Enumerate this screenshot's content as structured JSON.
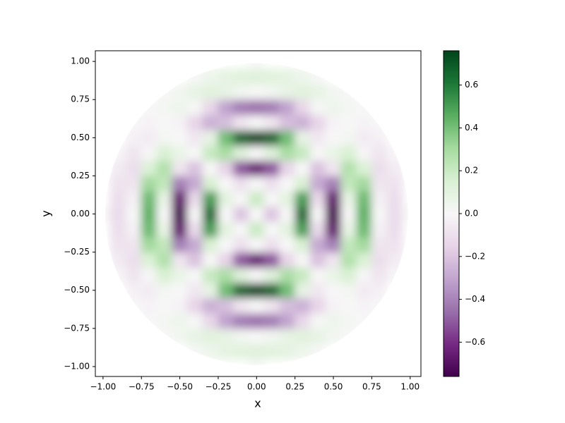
{
  "chart_data": {
    "type": "heatmap",
    "xlabel": "x",
    "ylabel": "y",
    "x": [
      -1,
      -0.9,
      -0.8,
      -0.7,
      -0.6,
      -0.5,
      -0.4,
      -0.3,
      -0.2,
      -0.1,
      0,
      0.1,
      0.2,
      0.3,
      0.4,
      0.5,
      0.6,
      0.7,
      0.8,
      0.9,
      1
    ],
    "y": [
      -1,
      -0.9,
      -0.8,
      -0.7,
      -0.6,
      -0.5,
      -0.4,
      -0.3,
      -0.2,
      -0.1,
      0,
      0.1,
      0.2,
      0.3,
      0.4,
      0.5,
      0.6,
      0.7,
      0.8,
      0.9,
      1
    ],
    "z": [
      [
        null,
        null,
        null,
        null,
        null,
        null,
        null,
        null,
        null,
        null,
        0,
        null,
        null,
        null,
        null,
        null,
        null,
        null,
        null,
        null,
        null
      ],
      [
        null,
        null,
        null,
        null,
        null,
        null,
        0.01,
        0.05,
        0.09,
        0.11,
        0.12,
        0.11,
        0.09,
        0.05,
        0.01,
        null,
        null,
        null,
        null,
        null,
        null
      ],
      [
        null,
        null,
        null,
        null,
        0,
        0.03,
        0.08,
        0.11,
        0.08,
        0.03,
        0,
        0.03,
        0.08,
        0.11,
        0.08,
        0.03,
        0,
        null,
        null,
        null,
        null
      ],
      [
        null,
        null,
        null,
        0,
        0.02,
        0.05,
        0.01,
        -0.14,
        -0.31,
        -0.42,
        -0.45,
        -0.42,
        -0.31,
        -0.14,
        0.01,
        0.05,
        0.02,
        0,
        null,
        null,
        null
      ],
      [
        null,
        null,
        0,
        -0.02,
        0,
        -0.02,
        -0.15,
        -0.27,
        -0.22,
        -0.07,
        0,
        -0.07,
        -0.22,
        -0.27,
        -0.15,
        -0.02,
        0,
        -0.02,
        0,
        null,
        null
      ],
      [
        null,
        null,
        -0.03,
        -0.05,
        0.02,
        0,
        -0.07,
        0.08,
        0.41,
        0.67,
        0.75,
        0.67,
        0.41,
        0.08,
        -0.07,
        0,
        0.02,
        -0.05,
        -0.03,
        null,
        null
      ],
      [
        null,
        -0.01,
        -0.08,
        -0.01,
        0.15,
        0.07,
        0,
        0.21,
        0.29,
        0.12,
        0,
        0.12,
        0.29,
        0.21,
        0,
        0.07,
        0.15,
        -0.01,
        -0.08,
        -0.01,
        null
      ],
      [
        null,
        -0.05,
        -0.11,
        0.14,
        0.27,
        -0.08,
        -0.21,
        0,
        -0.15,
        -0.51,
        -0.65,
        -0.51,
        -0.15,
        0,
        -0.21,
        -0.08,
        0.27,
        0.14,
        -0.11,
        -0.05,
        null
      ],
      [
        null,
        -0.09,
        -0.08,
        0.31,
        0.22,
        -0.41,
        -0.29,
        0.15,
        0,
        -0.1,
        0,
        -0.1,
        0,
        0.15,
        -0.29,
        -0.41,
        0.22,
        0.31,
        -0.08,
        -0.09,
        null
      ],
      [
        null,
        -0.11,
        -0.03,
        0.42,
        0.07,
        -0.67,
        -0.12,
        0.51,
        0.1,
        0,
        0.2,
        0,
        0.1,
        0.51,
        -0.12,
        -0.67,
        0.07,
        0.42,
        -0.03,
        -0.11,
        null
      ],
      [
        0,
        -0.12,
        0,
        0.45,
        0,
        -0.75,
        0,
        0.65,
        0,
        -0.2,
        0,
        -0.2,
        0,
        0.65,
        0,
        -0.75,
        0,
        0.45,
        0,
        -0.12,
        0
      ],
      [
        null,
        -0.11,
        -0.03,
        0.42,
        0.07,
        -0.67,
        -0.12,
        0.51,
        0.1,
        0,
        0.2,
        0,
        0.1,
        0.51,
        -0.12,
        -0.67,
        0.07,
        0.42,
        -0.03,
        -0.11,
        null
      ],
      [
        null,
        -0.09,
        -0.08,
        0.31,
        0.22,
        -0.41,
        -0.29,
        0.15,
        0,
        -0.1,
        0,
        -0.1,
        0,
        0.15,
        -0.29,
        -0.41,
        0.22,
        0.31,
        -0.08,
        -0.09,
        null
      ],
      [
        null,
        -0.05,
        -0.11,
        0.14,
        0.27,
        -0.08,
        -0.21,
        0,
        -0.15,
        -0.51,
        -0.65,
        -0.51,
        -0.15,
        0,
        -0.21,
        -0.08,
        0.27,
        0.14,
        -0.11,
        -0.05,
        null
      ],
      [
        null,
        -0.01,
        -0.08,
        -0.01,
        0.15,
        0.07,
        0,
        0.21,
        0.29,
        0.12,
        0,
        0.12,
        0.29,
        0.21,
        0,
        0.07,
        0.15,
        -0.01,
        -0.08,
        -0.01,
        null
      ],
      [
        null,
        null,
        -0.03,
        -0.05,
        0.02,
        0,
        -0.07,
        0.08,
        0.41,
        0.67,
        0.75,
        0.67,
        0.41,
        0.08,
        -0.07,
        0,
        0.02,
        -0.05,
        -0.03,
        null,
        null
      ],
      [
        null,
        null,
        0,
        -0.02,
        0,
        -0.02,
        -0.15,
        -0.27,
        -0.22,
        -0.07,
        0,
        -0.07,
        -0.22,
        -0.27,
        -0.15,
        -0.02,
        0,
        -0.02,
        0,
        null,
        null
      ],
      [
        null,
        null,
        null,
        0,
        0.02,
        0.05,
        0.01,
        -0.14,
        -0.31,
        -0.42,
        -0.45,
        -0.42,
        -0.31,
        -0.14,
        0.01,
        0.05,
        0.02,
        0,
        null,
        null,
        null
      ],
      [
        null,
        null,
        null,
        null,
        0,
        0.03,
        0.08,
        0.11,
        0.08,
        0.03,
        0,
        0.03,
        0.08,
        0.11,
        0.08,
        0.03,
        0,
        null,
        null,
        null,
        null
      ],
      [
        null,
        null,
        null,
        null,
        null,
        null,
        0.01,
        0.05,
        0.09,
        0.11,
        0.12,
        0.11,
        0.09,
        0.05,
        0.01,
        null,
        null,
        null,
        null,
        null,
        null
      ],
      [
        null,
        null,
        null,
        null,
        null,
        null,
        null,
        null,
        null,
        null,
        0,
        null,
        null,
        null,
        null,
        null,
        null,
        null,
        null,
        null,
        null
      ]
    ],
    "xlim": [
      -1.05,
      1.07
    ],
    "ylim": [
      -1.065,
      1.07
    ],
    "xticks": [
      {
        "value": -1,
        "label": "−1.00"
      },
      {
        "value": -0.75,
        "label": "−0.75"
      },
      {
        "value": -0.5,
        "label": "−0.50"
      },
      {
        "value": -0.25,
        "label": "−0.25"
      },
      {
        "value": 0,
        "label": "0.00"
      },
      0.25,
      {
        "value": 0.5,
        "label": "0.50"
      },
      0.75,
      {
        "value": 1,
        "label": "1.00"
      }
    ],
    "yticks": [
      {
        "value": -1,
        "label": "−1.00"
      },
      {
        "value": -0.75,
        "label": "−0.75"
      },
      {
        "value": -0.5,
        "label": "−0.50"
      },
      {
        "value": -0.25,
        "label": "−0.25"
      },
      {
        "value": 0,
        "label": "0.00"
      },
      0.25,
      {
        "value": 0.5,
        "label": "0.50"
      },
      0.75,
      {
        "value": 1,
        "label": "1.00"
      }
    ],
    "clim": [
      -0.76,
      0.76
    ],
    "cticks": [
      {
        "value": -0.6,
        "label": "−0.6"
      },
      {
        "value": -0.4,
        "label": "−0.4"
      },
      {
        "value": -0.2,
        "label": "−0.2"
      },
      {
        "value": 0,
        "label": "0.0"
      },
      0.2,
      0.4,
      0.6
    ],
    "colormap": [
      "#40004b",
      "#762a83",
      "#9970ab",
      "#c2a5cf",
      "#e7d4e8",
      "#f7f7f7",
      "#d9f0d3",
      "#a6dba0",
      "#5aae61",
      "#1b7837",
      "#00441b"
    ]
  }
}
